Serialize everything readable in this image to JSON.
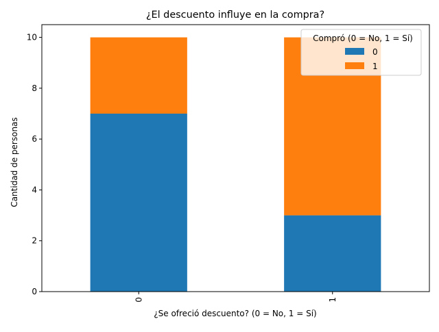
{
  "chart_data": {
    "type": "bar",
    "stacked": true,
    "title": "¿El descuento influye en la compra?",
    "xlabel": "¿Se ofreció descuento? (0 = No, 1 = Sí)",
    "ylabel": "Cantidad de personas",
    "categories": [
      "0",
      "1"
    ],
    "series": [
      {
        "name": "0",
        "color": "#1f77b4",
        "values": [
          7,
          3
        ]
      },
      {
        "name": "1",
        "color": "#ff7f0e",
        "values": [
          3,
          7
        ]
      }
    ],
    "ylim": [
      0,
      10.5
    ],
    "yticks": [
      0,
      2,
      4,
      6,
      8,
      10
    ],
    "grid": false,
    "legend": {
      "title": "Compró (0 = No, 1 = Sí)",
      "placement": "top-right"
    }
  }
}
